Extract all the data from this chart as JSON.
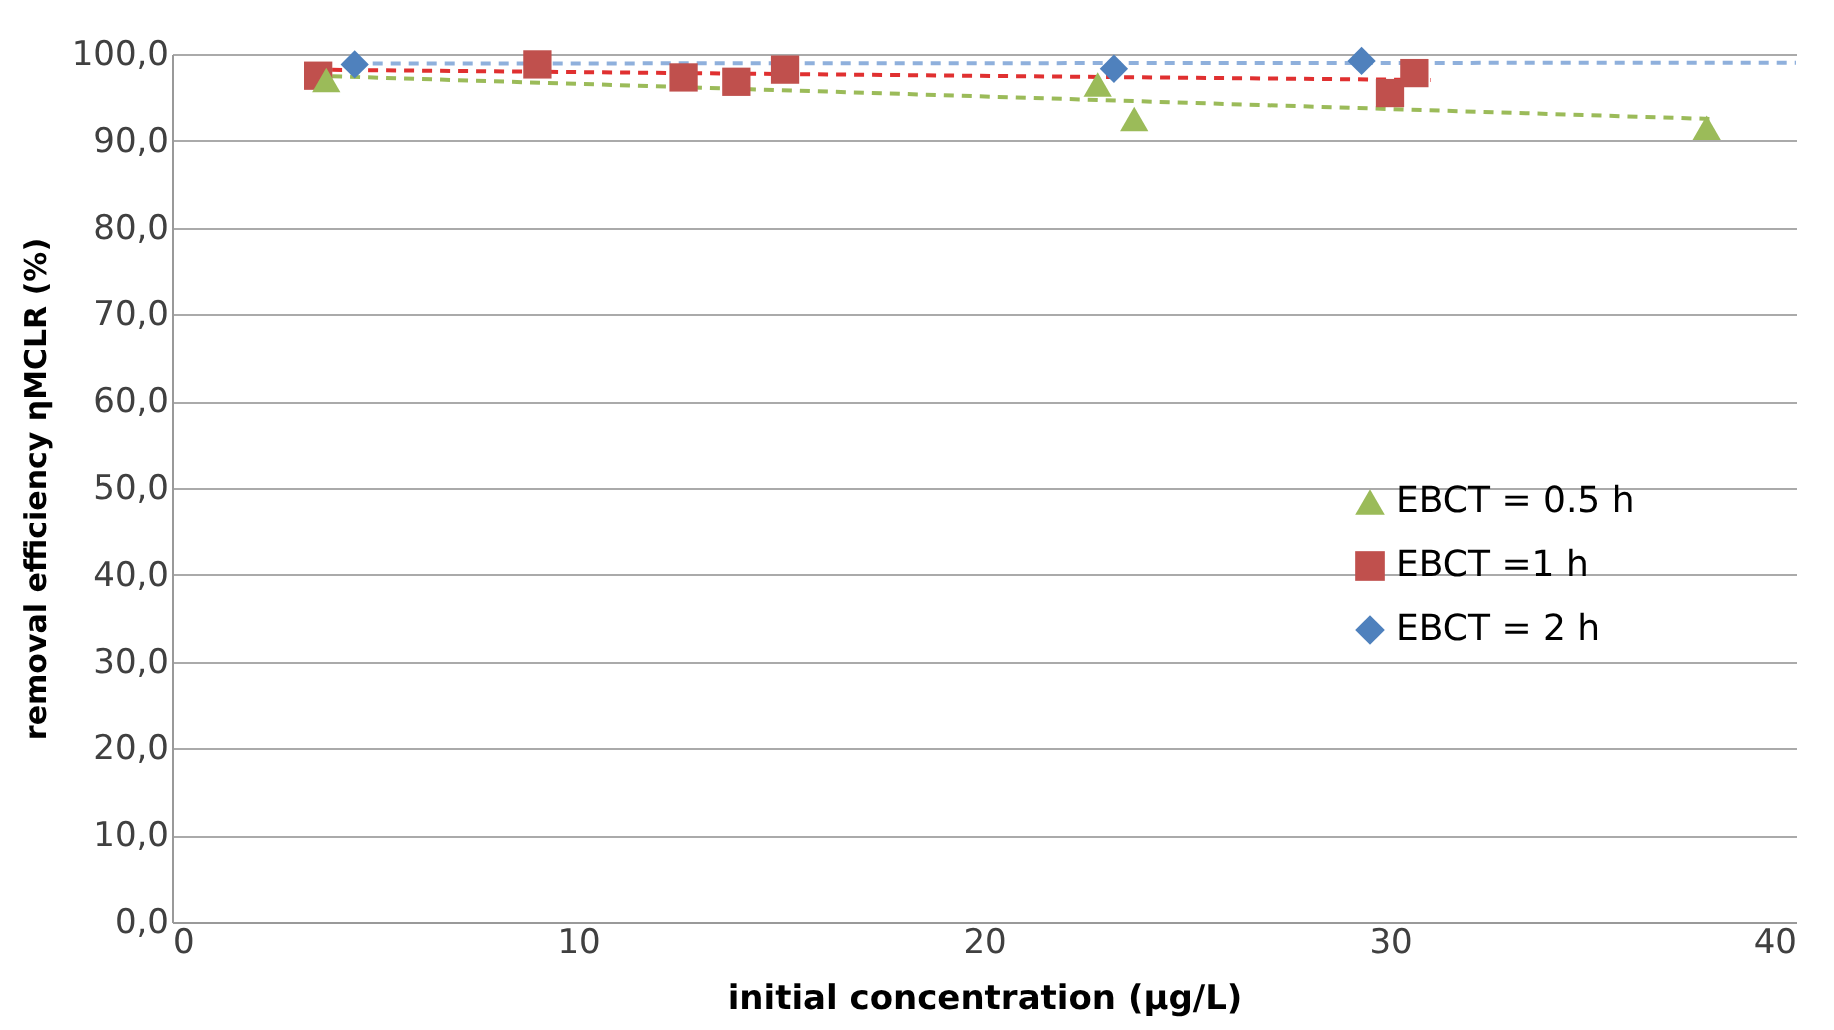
{
  "chart_data": {
    "type": "scatter",
    "xlabel": "initial concentration (µg/L)",
    "ylabel": "removal efficiency ηMCLR (%)",
    "xlim": [
      0,
      40
    ],
    "xticks": [
      0,
      10,
      20,
      30,
      40
    ],
    "ylim": [
      0,
      100
    ],
    "yticks": [
      {
        "value": 0,
        "label": "0,0"
      },
      {
        "value": 10,
        "label": "10,0"
      },
      {
        "value": 20,
        "label": "20,0"
      },
      {
        "value": 30,
        "label": "30,0"
      },
      {
        "value": 40,
        "label": "40,0"
      },
      {
        "value": 50,
        "label": "50,0"
      },
      {
        "value": 60,
        "label": "60,0"
      },
      {
        "value": 70,
        "label": "70,0"
      },
      {
        "value": 80,
        "label": "80,0"
      },
      {
        "value": 90,
        "label": "90,0"
      },
      {
        "value": 100,
        "label": "100,0"
      }
    ],
    "grid": "y",
    "legend": "right",
    "series": [
      {
        "name": "EBCT = 0.5 h",
        "color": "#9bbb59",
        "marker": "triangle",
        "x": [
          3.8,
          22.8,
          23.7,
          37.8
        ],
        "values": [
          97.0,
          96.5,
          92.5,
          91.5
        ]
      },
      {
        "name": "EBCT =1 h",
        "color": "#c0504d",
        "marker": "square",
        "x": [
          3.6,
          9.0,
          12.6,
          13.9,
          15.1,
          30.0,
          30.6
        ],
        "values": [
          97.5,
          98.8,
          97.3,
          96.8,
          98.2,
          95.5,
          97.8
        ]
      },
      {
        "name": "EBCT = 2 h",
        "color": "#4f81bd",
        "marker": "diamond",
        "x": [
          4.5,
          23.2,
          29.3
        ],
        "values": [
          98.8,
          98.3,
          99.2
        ]
      },
      {
        "type": "line",
        "color": "#9bbb59",
        "line_style": "dashed",
        "x": [
          3.5,
          38
        ],
        "values": [
          97.5,
          92.5
        ]
      },
      {
        "type": "line",
        "color": "#e03030",
        "line_style": "dashed",
        "x": [
          3.5,
          31
        ],
        "values": [
          98.2,
          97.0
        ]
      },
      {
        "type": "line",
        "color": "#8fb0dc",
        "line_style": "dashed",
        "x": [
          4.5,
          40
        ],
        "values": [
          98.9,
          99.0
        ]
      }
    ]
  }
}
